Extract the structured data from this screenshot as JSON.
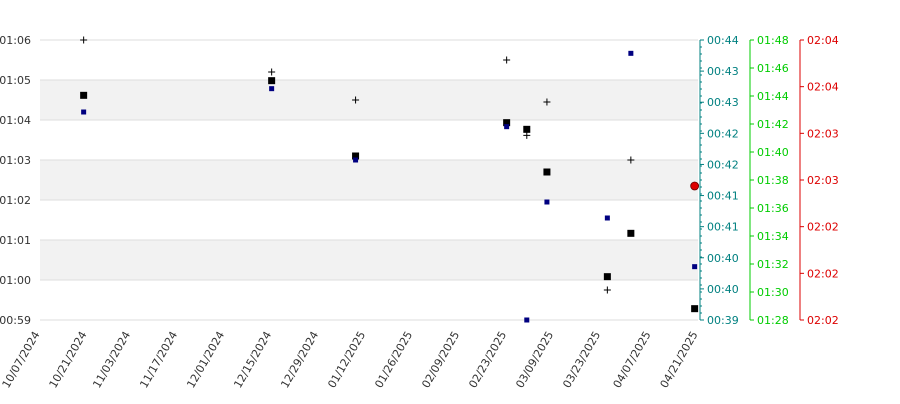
{
  "chart_data": {
    "type": "scatter",
    "band_color": "#f2f2f2",
    "grid_color": "#dddddd",
    "x_ticks": [
      "10/07/2024",
      "10/21/2024",
      "11/03/2024",
      "11/17/2024",
      "12/01/2024",
      "12/15/2024",
      "12/29/2024",
      "01/12/2025",
      "01/26/2025",
      "02/09/2025",
      "02/23/2025",
      "03/09/2025",
      "03/23/2025",
      "04/07/2025",
      "04/21/2025"
    ],
    "xlim": [
      "10/07/2024",
      "04/21/2025"
    ],
    "y_left": {
      "ticks": [
        "01:06",
        "01:05",
        "01:04",
        "01:03",
        "01:02",
        "01:01",
        "01:00",
        "00:59"
      ],
      "range_sec": [
        3540,
        3960
      ],
      "color": "#333333"
    },
    "y_right": [
      {
        "color": "#008080",
        "ticks": [
          "00:44",
          "00:43",
          "00:43",
          "00:42",
          "00:42",
          "00:41",
          "00:41",
          "00:40",
          "00:40",
          "00:39"
        ],
        "minor_ticks": true
      },
      {
        "color": "#00cc00",
        "ticks": [
          "01:48",
          "01:46",
          "01:44",
          "01:42",
          "01:40",
          "01:38",
          "01:36",
          "01:34",
          "01:32",
          "01:30",
          "01:28"
        ]
      },
      {
        "color": "#dd0000",
        "ticks": [
          "02:04",
          "02:04",
          "02:03",
          "02:03",
          "02:02",
          "02:02",
          "02:02"
        ]
      }
    ],
    "series": [
      {
        "marker": "square",
        "color": "#000000",
        "points": [
          {
            "x": "10/20/2024",
            "y": "01:04:37"
          },
          {
            "x": "12/15/2024",
            "y": "01:04:59"
          },
          {
            "x": "01/09/2025",
            "y": "01:03:06"
          },
          {
            "x": "02/23/2025",
            "y": "01:03:56"
          },
          {
            "x": "03/01/2025",
            "y": "01:03:46"
          },
          {
            "x": "03/07/2025",
            "y": "01:02:42"
          },
          {
            "x": "03/25/2025",
            "y": "01:00:05"
          },
          {
            "x": "04/01/2025",
            "y": "01:01:10"
          },
          {
            "x": "04/20/2025",
            "y": "00:59:17"
          }
        ]
      },
      {
        "marker": "small-square",
        "color": "#000080",
        "points": [
          {
            "x": "10/20/2024",
            "y": "01:04:12"
          },
          {
            "x": "12/15/2024",
            "y": "01:04:47"
          },
          {
            "x": "01/09/2025",
            "y": "01:03:00"
          },
          {
            "x": "02/23/2025",
            "y": "01:03:50"
          },
          {
            "x": "03/01/2025",
            "y": "00:59:00"
          },
          {
            "x": "03/07/2025",
            "y": "01:01:57"
          },
          {
            "x": "03/25/2025",
            "y": "01:01:33"
          },
          {
            "x": "04/01/2025",
            "y": "01:05:40"
          },
          {
            "x": "04/20/2025",
            "y": "01:00:20"
          }
        ]
      },
      {
        "marker": "plus",
        "color": "#000000",
        "points": [
          {
            "x": "10/20/2024",
            "y": "01:06:00"
          },
          {
            "x": "12/15/2024",
            "y": "01:05:12"
          },
          {
            "x": "01/09/2025",
            "y": "01:04:30"
          },
          {
            "x": "02/23/2025",
            "y": "01:05:30"
          },
          {
            "x": "03/01/2025",
            "y": "01:03:37"
          },
          {
            "x": "03/07/2025",
            "y": "01:04:27"
          },
          {
            "x": "03/25/2025",
            "y": "00:59:45"
          },
          {
            "x": "04/01/2025",
            "y": "01:03:00"
          }
        ]
      },
      {
        "marker": "circle",
        "color": "#dd0000",
        "points": [
          {
            "x": "04/20/2025",
            "y": "01:02:21"
          }
        ]
      }
    ]
  }
}
